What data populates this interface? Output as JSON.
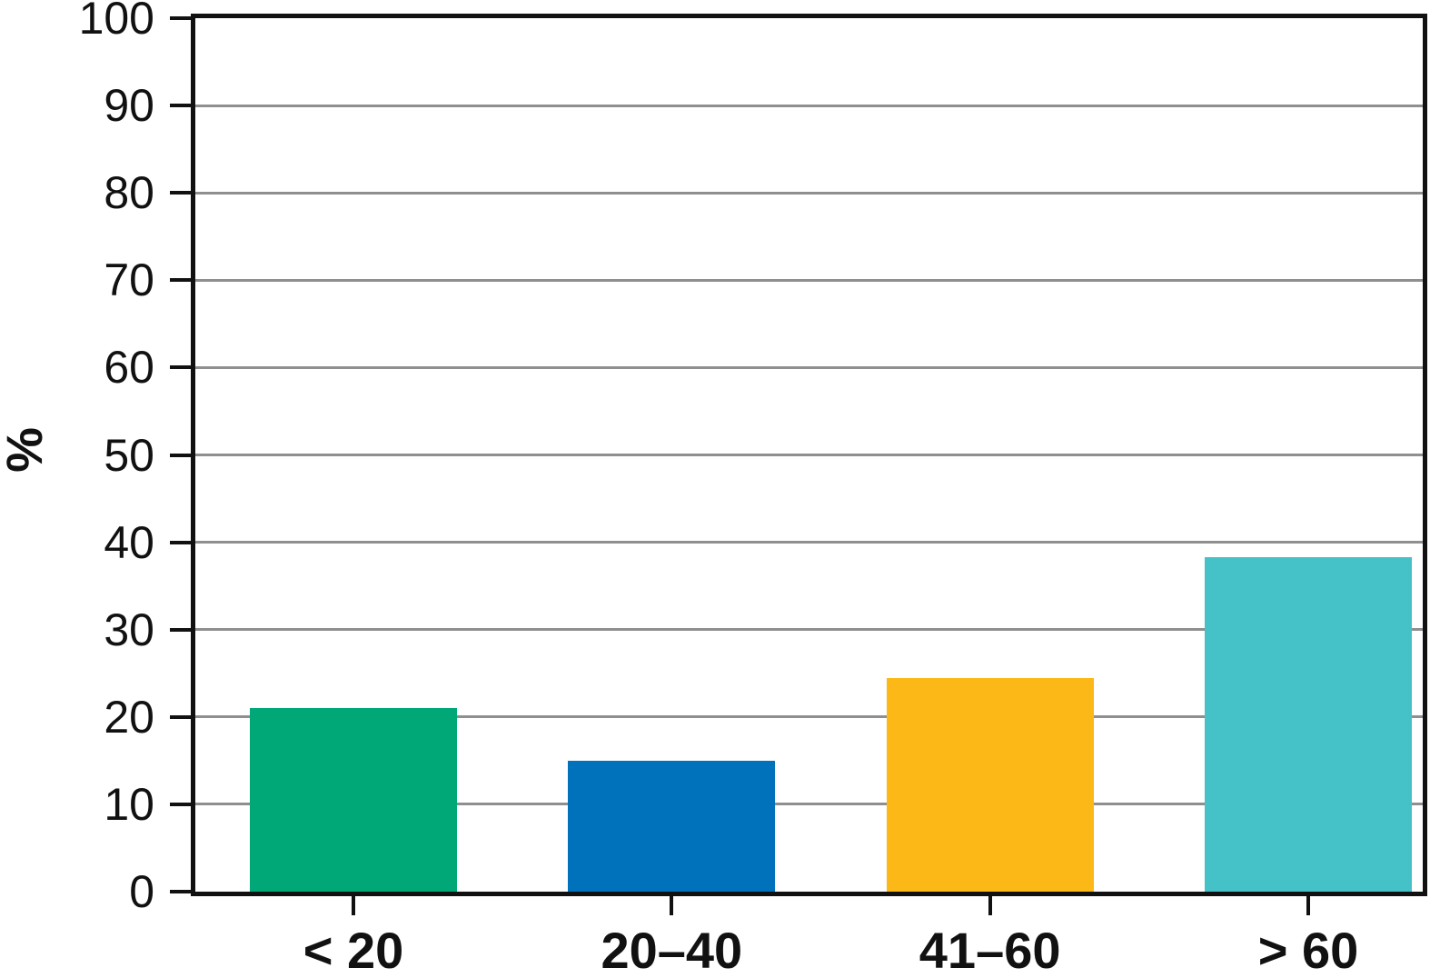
{
  "chart_data": {
    "type": "bar",
    "title": "",
    "xlabel": "",
    "ylabel": "%",
    "categories": [
      "< 20",
      "20–40",
      "41–60",
      "> 60"
    ],
    "values": [
      21,
      15,
      24.5,
      38.3
    ],
    "bar_colors": [
      "#00A878",
      "#0072BC",
      "#FBB817",
      "#45C1C8"
    ],
    "ylim": [
      0,
      100
    ],
    "yticks": [
      0,
      10,
      20,
      30,
      40,
      50,
      60,
      70,
      80,
      90,
      100
    ],
    "grid": "horizontal gray lines at every 10",
    "legend_position": "none",
    "axis_color": "#111111",
    "gridline_color": "#8F8F8F"
  }
}
